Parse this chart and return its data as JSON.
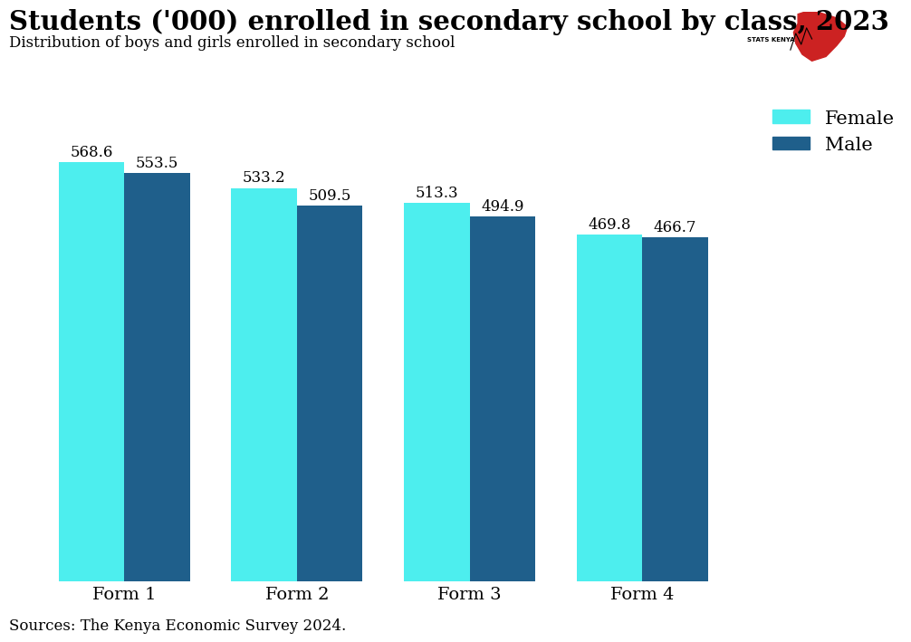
{
  "title": "Students ('000) enrolled in secondary school by class, 2023",
  "subtitle": "Distribution of boys and girls enrolled in secondary school",
  "source": "Sources: The Kenya Economic Survey 2024.",
  "categories": [
    "Form 1",
    "Form 2",
    "Form 3",
    "Form 4"
  ],
  "female_values": [
    568.6,
    533.2,
    513.3,
    469.8
  ],
  "male_values": [
    553.5,
    509.5,
    494.9,
    466.7
  ],
  "female_color": "#4DEEEE",
  "male_color": "#1F5F8B",
  "bar_width": 0.38,
  "ylim": [
    0,
    650
  ],
  "title_fontsize": 21,
  "subtitle_fontsize": 12,
  "source_fontsize": 12,
  "label_fontsize": 12,
  "tick_fontsize": 14,
  "legend_fontsize": 15,
  "background_color": "#FFFFFF"
}
